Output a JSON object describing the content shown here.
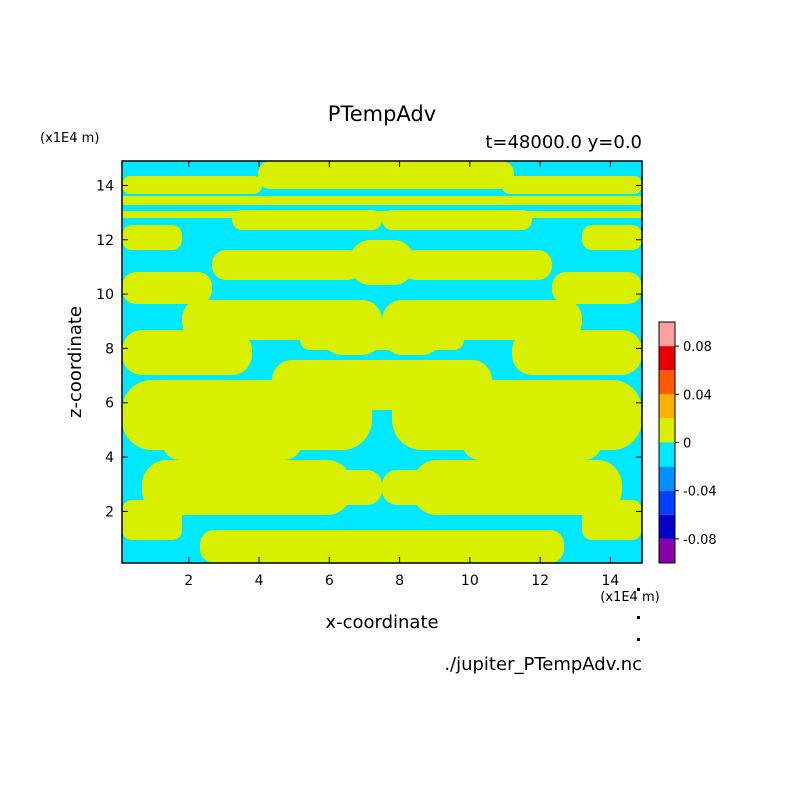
{
  "chart_data": {
    "type": "heatmap",
    "title": "PTempAdv",
    "subtitle": "t=48000.0 y=0.0",
    "xlabel": "x-coordinate",
    "ylabel": "z-coordinate",
    "x_unit": "(x1E4 m)",
    "y_unit": "(x1E4 m)",
    "xlim": [
      0.1,
      14.9
    ],
    "ylim": [
      0.1,
      14.9
    ],
    "x_ticks": [
      2,
      4,
      6,
      8,
      10,
      12,
      14
    ],
    "y_ticks": [
      2,
      4,
      6,
      8,
      10,
      12,
      14
    ],
    "x_tick_labels": [
      "2",
      "4",
      "6",
      "8",
      "10",
      "12",
      "14"
    ],
    "y_tick_labels": [
      "2",
      "4",
      "6",
      "8",
      "10",
      "12",
      "14"
    ],
    "colorbar": {
      "levels": [
        -0.1,
        -0.08,
        -0.06,
        -0.04,
        -0.02,
        0,
        0.02,
        0.04,
        0.06,
        0.08,
        0.1
      ],
      "colors": [
        "#8a00a8",
        "#0000c8",
        "#0040ff",
        "#0090ff",
        "#00e8ff",
        "#d8f000",
        "#ffb000",
        "#ff5a00",
        "#e80000",
        "#ffa0a0"
      ],
      "tick_values": [
        -0.08,
        -0.04,
        0,
        0.04,
        0.08
      ],
      "tick_labels": [
        "-0.08",
        "-0.04",
        "0",
        "0.04",
        "0.08"
      ]
    },
    "field_note_colors": {
      "negative": "#00e8ff",
      "positive": "#d8f000"
    },
    "source_file": "./jupiter_PTempAdv.nc"
  }
}
